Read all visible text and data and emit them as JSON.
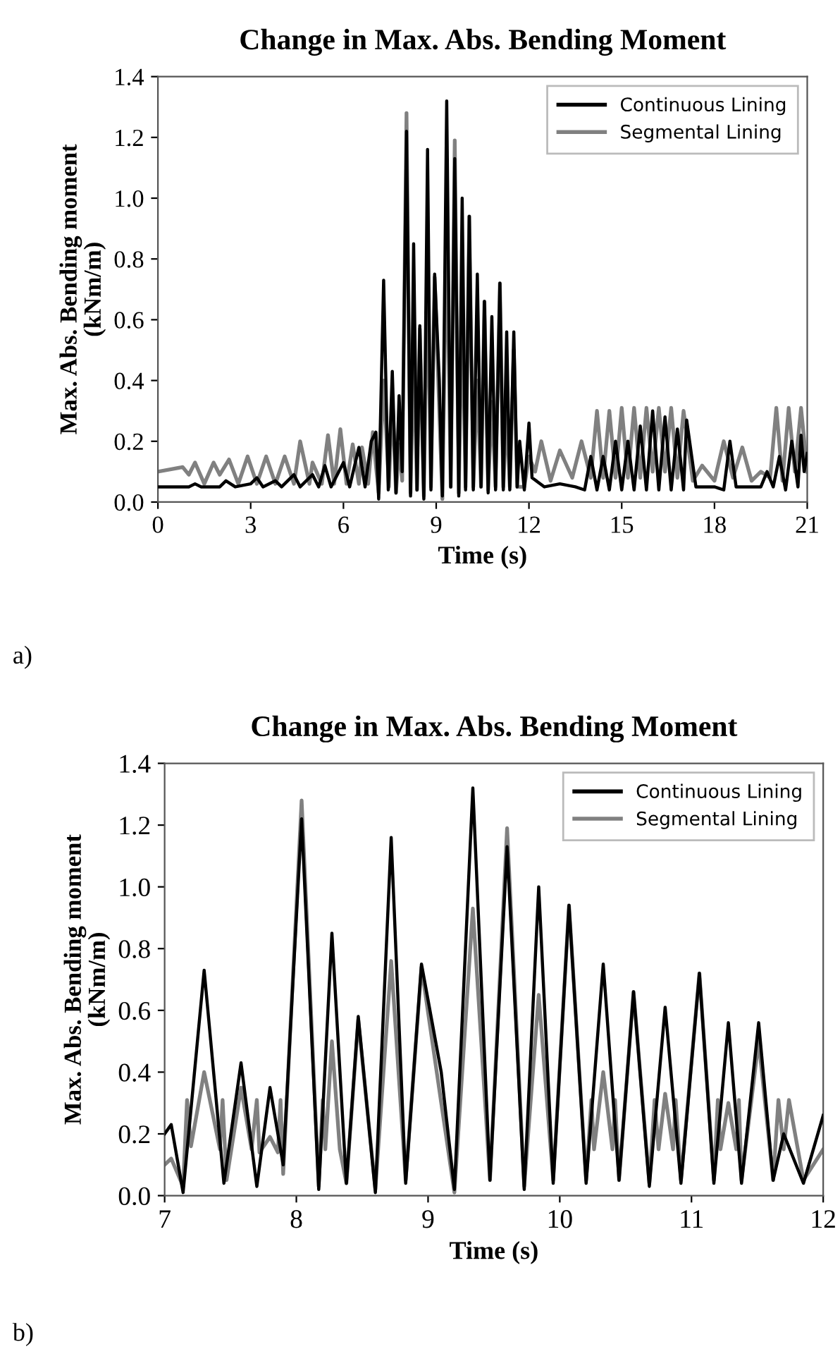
{
  "chart_data": [
    {
      "type": "line",
      "title": "Change in Max. Abs. Bending Moment",
      "xlabel": "Time (s)",
      "ylabel": "Max. Abs. Bending moment\n(kNm/m)",
      "annotations": [
        "a)"
      ],
      "xlim": [
        0,
        21
      ],
      "ylim": [
        0,
        1.4
      ],
      "xticks": [
        0,
        3,
        6,
        9,
        12,
        15,
        18,
        21
      ],
      "yticks": [
        {
          "value": 0,
          "label": "0.0"
        },
        {
          "value": 0.2,
          "label": "0.2"
        },
        {
          "value": 0.4,
          "label": "0.4"
        },
        {
          "value": 0.6,
          "label": "0.6"
        },
        {
          "value": 0.8,
          "label": "0.8"
        },
        {
          "value": 1.0,
          "label": "1.0"
        },
        {
          "value": 1.2,
          "label": "1.2"
        },
        {
          "value": 1.4,
          "label": "1.4"
        }
      ],
      "legend": "top right",
      "grid": false,
      "marker": "none",
      "line_style": "solid",
      "series": [
        {
          "name": "Continuous Lining",
          "color": "#000000",
          "x": [
            0,
            1.0,
            1.2,
            1.4,
            2.0,
            2.2,
            2.5,
            3.0,
            3.2,
            3.4,
            3.8,
            4.0,
            4.4,
            4.6,
            5.0,
            5.2,
            5.4,
            5.6,
            6.0,
            6.2,
            6.5,
            6.7,
            6.9,
            7.05,
            7.14,
            7.3,
            7.45,
            7.58,
            7.7,
            7.8,
            7.9,
            8.04,
            8.17,
            8.27,
            8.38,
            8.47,
            8.6,
            8.72,
            8.83,
            8.95,
            9.1,
            9.2,
            9.34,
            9.47,
            9.6,
            9.73,
            9.84,
            9.95,
            10.07,
            10.2,
            10.33,
            10.45,
            10.56,
            10.68,
            10.8,
            10.92,
            11.06,
            11.17,
            11.28,
            11.38,
            11.51,
            11.62,
            11.7,
            11.85,
            12.0,
            12.1,
            12.5,
            13.0,
            13.5,
            13.8,
            14.0,
            14.2,
            14.4,
            14.6,
            14.8,
            15.0,
            15.2,
            15.4,
            15.6,
            15.8,
            16.0,
            16.2,
            16.4,
            16.6,
            16.8,
            17.0,
            17.1,
            17.4,
            18.0,
            18.3,
            18.5,
            18.7,
            19.5,
            19.7,
            19.9,
            20.1,
            20.3,
            20.5,
            20.7,
            20.8,
            20.9,
            21
          ],
          "values": [
            0.05,
            0.05,
            0.06,
            0.05,
            0.05,
            0.07,
            0.05,
            0.06,
            0.08,
            0.05,
            0.07,
            0.05,
            0.09,
            0.05,
            0.09,
            0.05,
            0.12,
            0.05,
            0.13,
            0.05,
            0.18,
            0.05,
            0.2,
            0.23,
            0.01,
            0.73,
            0.04,
            0.43,
            0.03,
            0.35,
            0.1,
            1.22,
            0.02,
            0.85,
            0.04,
            0.58,
            0.01,
            1.16,
            0.04,
            0.75,
            0.4,
            0.02,
            1.32,
            0.05,
            1.13,
            0.02,
            1.0,
            0.04,
            0.94,
            0.04,
            0.75,
            0.05,
            0.66,
            0.03,
            0.61,
            0.04,
            0.72,
            0.04,
            0.56,
            0.04,
            0.56,
            0.05,
            0.2,
            0.04,
            0.26,
            0.08,
            0.05,
            0.06,
            0.05,
            0.04,
            0.15,
            0.04,
            0.15,
            0.04,
            0.2,
            0.04,
            0.2,
            0.04,
            0.25,
            0.04,
            0.3,
            0.04,
            0.28,
            0.04,
            0.24,
            0.04,
            0.27,
            0.05,
            0.05,
            0.04,
            0.2,
            0.05,
            0.05,
            0.1,
            0.05,
            0.15,
            0.04,
            0.2,
            0.05,
            0.22,
            0.1,
            0.16
          ]
        },
        {
          "name": "Segmental Lining",
          "color": "#808080",
          "x": [
            0,
            0.8,
            1.0,
            1.2,
            1.5,
            1.8,
            2.0,
            2.3,
            2.6,
            2.9,
            3.2,
            3.5,
            3.8,
            4.1,
            4.4,
            4.6,
            4.9,
            5.0,
            5.3,
            5.5,
            5.7,
            5.9,
            6.1,
            6.3,
            6.5,
            6.6,
            6.8,
            6.95,
            7.05,
            7.14,
            7.3,
            7.47,
            7.58,
            7.7,
            7.8,
            7.9,
            8.04,
            8.17,
            8.27,
            8.38,
            8.47,
            8.6,
            8.72,
            8.83,
            8.95,
            9.1,
            9.2,
            9.34,
            9.47,
            9.6,
            9.73,
            9.84,
            9.95,
            10.07,
            10.2,
            10.33,
            10.45,
            10.56,
            10.68,
            10.8,
            10.92,
            11.06,
            11.17,
            11.28,
            11.38,
            11.51,
            11.62,
            11.85,
            12.0,
            12.2,
            12.4,
            12.7,
            13.0,
            13.4,
            13.7,
            14.0,
            14.2,
            14.4,
            14.6,
            14.8,
            15.0,
            15.2,
            15.4,
            15.6,
            15.8,
            16.0,
            16.2,
            16.4,
            16.6,
            16.8,
            17.0,
            17.3,
            17.6,
            18.0,
            18.3,
            18.6,
            18.9,
            19.2,
            19.5,
            19.8,
            20.0,
            20.2,
            20.4,
            20.6,
            20.8,
            21
          ],
          "values": [
            0.1,
            0.115,
            0.09,
            0.13,
            0.06,
            0.13,
            0.09,
            0.14,
            0.06,
            0.15,
            0.06,
            0.15,
            0.06,
            0.15,
            0.06,
            0.2,
            0.06,
            0.13,
            0.06,
            0.22,
            0.06,
            0.24,
            0.06,
            0.19,
            0.06,
            0.18,
            0.06,
            0.23,
            0.12,
            0.03,
            0.4,
            0.05,
            0.35,
            0.03,
            0.19,
            0.07,
            1.28,
            0.03,
            0.5,
            0.04,
            0.57,
            0.02,
            0.76,
            0.05,
            0.74,
            0.3,
            0.01,
            0.93,
            0.05,
            1.19,
            0.03,
            0.65,
            0.05,
            0.94,
            0.05,
            0.4,
            0.05,
            0.66,
            0.04,
            0.33,
            0.05,
            0.72,
            0.05,
            0.3,
            0.05,
            0.5,
            0.05,
            0.05,
            0.15,
            0.1,
            0.2,
            0.07,
            0.17,
            0.08,
            0.2,
            0.08,
            0.3,
            0.08,
            0.3,
            0.08,
            0.31,
            0.08,
            0.31,
            0.08,
            0.31,
            0.1,
            0.31,
            0.1,
            0.31,
            0.08,
            0.3,
            0.07,
            0.12,
            0.07,
            0.2,
            0.08,
            0.18,
            0.07,
            0.1,
            0.08,
            0.31,
            0.07,
            0.31,
            0.1,
            0.31,
            0.1
          ]
        }
      ]
    },
    {
      "type": "line",
      "title": "Change in Max. Abs. Bending Moment",
      "xlabel": "Time (s)",
      "ylabel": "Max. Abs. Bending moment\n(kNm/m)",
      "annotations": [
        "b)"
      ],
      "xlim": [
        7,
        12
      ],
      "ylim": [
        0,
        1.4
      ],
      "xticks": [
        7,
        8,
        9,
        10,
        11,
        12
      ],
      "yticks": [
        {
          "value": 0,
          "label": "0.0"
        },
        {
          "value": 0.2,
          "label": "0.2"
        },
        {
          "value": 0.4,
          "label": "0.4"
        },
        {
          "value": 0.6,
          "label": "0.6"
        },
        {
          "value": 0.8,
          "label": "0.8"
        },
        {
          "value": 1.0,
          "label": "1.0"
        },
        {
          "value": 1.2,
          "label": "1.2"
        },
        {
          "value": 1.4,
          "label": "1.4"
        }
      ],
      "legend": "top right",
      "grid": false,
      "marker": "none",
      "line_style": "solid",
      "series": [
        {
          "name": "Continuous Lining",
          "color": "#000000",
          "x": [
            7.0,
            7.05,
            7.14,
            7.3,
            7.45,
            7.58,
            7.7,
            7.8,
            7.9,
            8.04,
            8.17,
            8.27,
            8.38,
            8.47,
            8.6,
            8.72,
            8.83,
            8.95,
            9.1,
            9.2,
            9.34,
            9.47,
            9.6,
            9.73,
            9.84,
            9.95,
            10.07,
            10.2,
            10.33,
            10.45,
            10.56,
            10.68,
            10.8,
            10.92,
            11.06,
            11.17,
            11.28,
            11.38,
            11.51,
            11.62,
            11.7,
            11.85,
            12.0
          ],
          "values": [
            0.2,
            0.23,
            0.01,
            0.73,
            0.04,
            0.43,
            0.03,
            0.35,
            0.1,
            1.22,
            0.02,
            0.85,
            0.04,
            0.58,
            0.01,
            1.16,
            0.04,
            0.75,
            0.4,
            0.02,
            1.32,
            0.05,
            1.13,
            0.02,
            1.0,
            0.04,
            0.94,
            0.04,
            0.75,
            0.05,
            0.66,
            0.03,
            0.61,
            0.04,
            0.72,
            0.04,
            0.56,
            0.04,
            0.56,
            0.05,
            0.2,
            0.04,
            0.26
          ]
        },
        {
          "name": "Segmental Lining",
          "color": "#808080",
          "x": [
            7.0,
            7.05,
            7.14,
            7.17,
            7.2,
            7.3,
            7.42,
            7.44,
            7.47,
            7.58,
            7.66,
            7.7,
            7.72,
            7.8,
            7.86,
            7.88,
            7.9,
            8.04,
            8.17,
            8.2,
            8.22,
            8.27,
            8.33,
            8.38,
            8.47,
            8.6,
            8.72,
            8.83,
            8.95,
            9.1,
            9.2,
            9.34,
            9.47,
            9.6,
            9.73,
            9.84,
            9.95,
            10.07,
            10.2,
            10.24,
            10.26,
            10.33,
            10.4,
            10.42,
            10.45,
            10.56,
            10.68,
            10.72,
            10.75,
            10.8,
            10.86,
            10.88,
            10.92,
            11.06,
            11.17,
            11.2,
            11.22,
            11.28,
            11.34,
            11.36,
            11.38,
            11.51,
            11.62,
            11.66,
            11.7,
            11.74,
            11.85,
            12.0
          ],
          "values": [
            0.1,
            0.12,
            0.03,
            0.31,
            0.16,
            0.4,
            0.15,
            0.31,
            0.05,
            0.35,
            0.15,
            0.31,
            0.14,
            0.19,
            0.14,
            0.31,
            0.07,
            1.28,
            0.03,
            0.31,
            0.15,
            0.5,
            0.15,
            0.04,
            0.57,
            0.02,
            0.76,
            0.05,
            0.74,
            0.3,
            0.01,
            0.93,
            0.05,
            1.19,
            0.03,
            0.65,
            0.05,
            0.94,
            0.05,
            0.31,
            0.15,
            0.4,
            0.15,
            0.31,
            0.05,
            0.66,
            0.04,
            0.31,
            0.15,
            0.33,
            0.15,
            0.31,
            0.05,
            0.72,
            0.05,
            0.31,
            0.15,
            0.3,
            0.15,
            0.31,
            0.05,
            0.5,
            0.05,
            0.31,
            0.15,
            0.31,
            0.05,
            0.15
          ]
        }
      ]
    }
  ]
}
